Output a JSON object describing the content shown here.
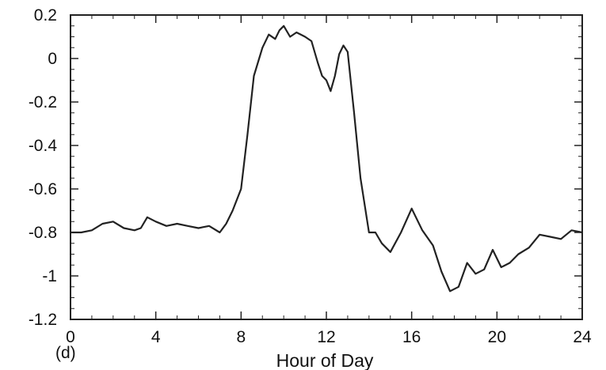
{
  "chart_data": {
    "type": "line",
    "title": "",
    "panel_label": "(d)",
    "xlabel": "Hour of Day",
    "ylabel": "",
    "xlim": [
      0,
      24
    ],
    "ylim": [
      -1.2,
      0.2
    ],
    "xticks": [
      0,
      4,
      8,
      12,
      16,
      20,
      24
    ],
    "xtick_labels": [
      "0",
      "4",
      "8",
      "12",
      "16",
      "20",
      "24"
    ],
    "yticks": [
      0.2,
      0,
      -0.2,
      -0.4,
      -0.6,
      -0.8,
      -1,
      -1.2
    ],
    "ytick_labels": [
      "0.2",
      "0",
      "-0.2",
      "-0.4",
      "-0.6",
      "-0.8",
      "-1",
      "-1.2"
    ],
    "grid": false,
    "line_color": "#222222",
    "series": [
      {
        "x": [
          0,
          0.5,
          1,
          1.5,
          2,
          2.5,
          3,
          3.3,
          3.6,
          4,
          4.5,
          5,
          5.5,
          6,
          6.5,
          7,
          7.3,
          7.6,
          8,
          8.3,
          8.6,
          9,
          9.3,
          9.6,
          9.8,
          10,
          10.3,
          10.6,
          11,
          11.3,
          11.6,
          11.8,
          12,
          12.2,
          12.4,
          12.6,
          12.8,
          13,
          13.3,
          13.6,
          14,
          14.3,
          14.6,
          15,
          15.5,
          16,
          16.5,
          17,
          17.4,
          17.8,
          18.2,
          18.6,
          19,
          19.4,
          19.8,
          20.2,
          20.6,
          21,
          21.5,
          22,
          22.5,
          23,
          23.5,
          24
        ],
        "y": [
          -0.8,
          -0.8,
          -0.79,
          -0.76,
          -0.75,
          -0.78,
          -0.79,
          -0.78,
          -0.73,
          -0.75,
          -0.77,
          -0.76,
          -0.77,
          -0.78,
          -0.77,
          -0.8,
          -0.76,
          -0.7,
          -0.6,
          -0.35,
          -0.08,
          0.05,
          0.11,
          0.09,
          0.13,
          0.15,
          0.1,
          0.12,
          0.1,
          0.08,
          -0.02,
          -0.08,
          -0.1,
          -0.15,
          -0.08,
          0.02,
          0.06,
          0.03,
          -0.25,
          -0.55,
          -0.8,
          -0.8,
          -0.85,
          -0.89,
          -0.8,
          -0.69,
          -0.79,
          -0.86,
          -0.98,
          -1.07,
          -1.05,
          -0.94,
          -0.99,
          -0.97,
          -0.88,
          -0.96,
          -0.94,
          -0.9,
          -0.87,
          -0.81,
          -0.82,
          -0.83,
          -0.79,
          -0.8
        ]
      }
    ]
  }
}
